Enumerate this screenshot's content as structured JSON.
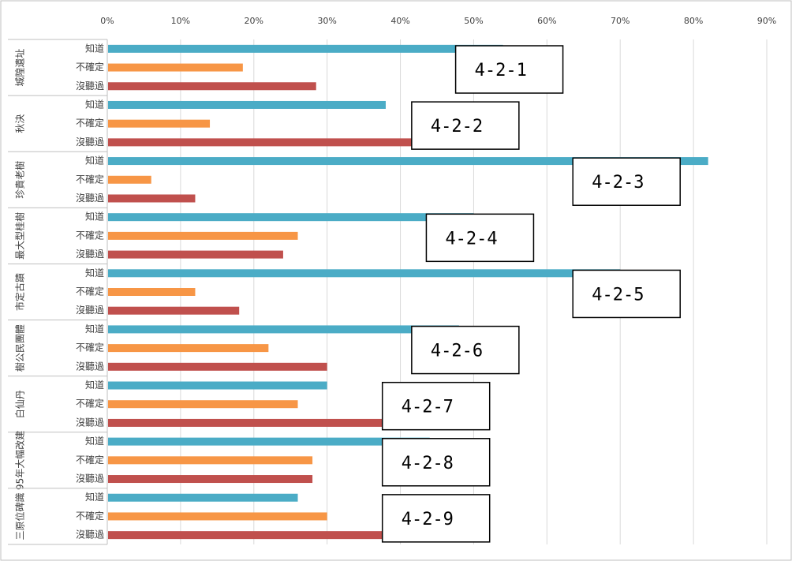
{
  "chart_data": {
    "type": "bar",
    "orientation": "horizontal",
    "x_ticks": [
      "0%",
      "10%",
      "20%",
      "30%",
      "40%",
      "50%",
      "60%",
      "70%",
      "80%",
      "90%"
    ],
    "xlim": [
      0,
      90
    ],
    "grid": true,
    "legend": "none",
    "categories": [
      "知道",
      "不確定",
      "沒聽過"
    ],
    "colors": {
      "知道": "#4bacc6",
      "不確定": "#f79646",
      "沒聽過": "#c0504d"
    },
    "groups": [
      {
        "label": "城隍遺址",
        "values": [
          54,
          18.5,
          28.5
        ]
      },
      {
        "label": "秋決",
        "values": [
          38,
          14,
          48
        ]
      },
      {
        "label": "珍貴老樹",
        "values": [
          82,
          6,
          12
        ]
      },
      {
        "label": "最大型桂樹",
        "values": [
          50,
          26,
          24
        ]
      },
      {
        "label": "市定古蹟",
        "values": [
          70,
          12,
          18
        ]
      },
      {
        "label": "樹公民團體",
        "values": [
          48,
          22,
          30
        ]
      },
      {
        "label": "白仙丹",
        "values": [
          30,
          26,
          44
        ]
      },
      {
        "label": "95年大幅改建",
        "values": [
          44,
          28,
          28
        ]
      },
      {
        "label": "三原位碑識",
        "values": [
          26,
          30,
          44
        ]
      }
    ],
    "annotations": [
      "4-2-1",
      "4-2-2",
      "4-2-3",
      "4-2-4",
      "4-2-5",
      "4-2-6",
      "4-2-7",
      "4-2-8",
      "4-2-9"
    ]
  }
}
